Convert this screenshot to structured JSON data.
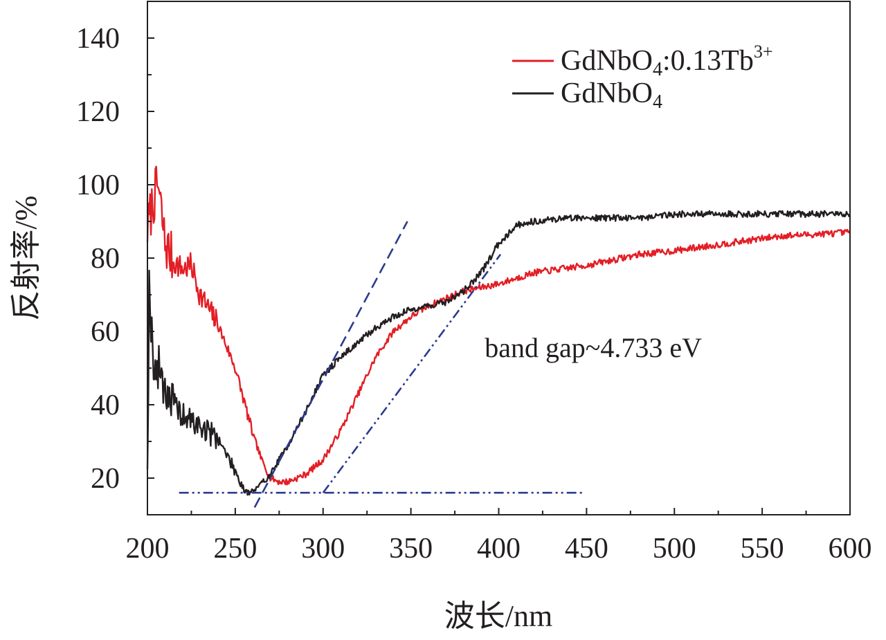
{
  "chart_data": {
    "type": "line",
    "title": "",
    "xlabel": "波长/nm",
    "ylabel": "反射率/%",
    "xlim": [
      200,
      600
    ],
    "ylim": [
      10,
      150
    ],
    "xticks": [
      200,
      250,
      300,
      350,
      400,
      450,
      500,
      550,
      600
    ],
    "xtick_labels": [
      "200",
      "250",
      "300",
      "350",
      "400",
      "450",
      "500",
      "550",
      "600"
    ],
    "yticks": [
      20,
      40,
      60,
      80,
      100,
      120,
      140
    ],
    "ytick_labels": [
      "20",
      "40",
      "60",
      "80",
      "100",
      "120",
      "140"
    ],
    "grid": false,
    "legend_position": "top-right",
    "series": [
      {
        "name": "GdNbO4:0.13Tb3+",
        "legend_base": "GdNbO",
        "legend_sub": "4",
        "legend_mid": ":0.13Tb",
        "legend_sup": "3+",
        "color": "#e31e25",
        "noise_seed": 7,
        "x": [
          200,
          203,
          206,
          210,
          215,
          220,
          225,
          230,
          240,
          250,
          260,
          265,
          270,
          275,
          280,
          290,
          300,
          310,
          320,
          330,
          340,
          350,
          360,
          370,
          380,
          390,
          400,
          420,
          450,
          480,
          500,
          530,
          560,
          600
        ],
        "y": [
          88,
          95,
          100,
          84,
          79,
          77,
          78,
          70,
          62,
          50,
          32,
          25,
          20,
          19,
          19,
          21,
          25,
          33,
          43,
          53,
          60,
          64,
          67,
          69,
          71,
          72,
          73,
          76,
          78,
          81,
          82,
          84,
          86,
          87
        ]
      },
      {
        "name": "GdNbO4",
        "legend_base": "GdNbO",
        "legend_sub": "4",
        "legend_mid": "",
        "legend_sup": "",
        "color": "#231f20",
        "noise_seed": 19,
        "x": [
          200,
          201,
          203,
          205,
          207,
          210,
          215,
          220,
          230,
          240,
          250,
          255,
          258,
          262,
          270,
          280,
          290,
          300,
          310,
          320,
          330,
          340,
          350,
          360,
          370,
          380,
          390,
          400,
          410,
          420,
          440,
          480,
          500,
          550,
          600
        ],
        "y": [
          26,
          72,
          55,
          48,
          50,
          45,
          40,
          37,
          34,
          31,
          22,
          17,
          16,
          17,
          21,
          29,
          38,
          48,
          53,
          57,
          61,
          64,
          66,
          67,
          68,
          71,
          76,
          84,
          89,
          90,
          91,
          91,
          92,
          92,
          92
        ]
      }
    ],
    "guides": [
      {
        "name": "baseline-guide",
        "color": "#2b3a8f",
        "style": "dash-dot-dot",
        "x": [
          218,
          448
        ],
        "y": [
          16,
          16
        ]
      },
      {
        "name": "tangent-guide-gdnbo4",
        "color": "#2b3a8f",
        "style": "dash",
        "x": [
          261,
          348
        ],
        "y": [
          12,
          90
        ]
      },
      {
        "name": "tangent-guide-tb-doped",
        "color": "#2b3a8f",
        "style": "dash-dot-dot",
        "x": [
          300,
          401
        ],
        "y": [
          16,
          81
        ]
      }
    ],
    "annotation": {
      "text": "band gap~4.733 eV",
      "x": 392,
      "y": 53
    }
  }
}
